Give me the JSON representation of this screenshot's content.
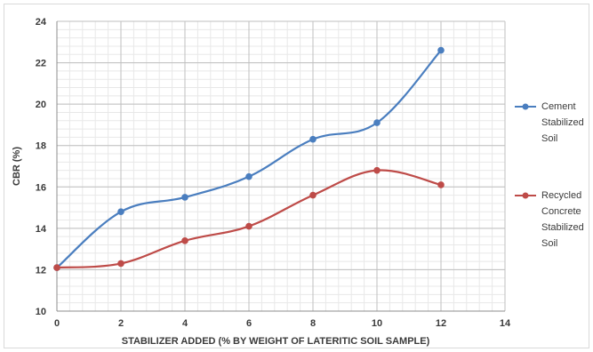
{
  "chart_data": {
    "type": "line",
    "x": [
      0,
      2,
      4,
      6,
      8,
      10,
      12
    ],
    "series": [
      {
        "name": "Cement Stabilized Soil",
        "label_lines": [
          "Cement",
          "Stabilized",
          "Soil"
        ],
        "color": "#4a7ebf",
        "values": [
          12.1,
          14.8,
          15.5,
          16.5,
          18.3,
          19.1,
          22.6
        ]
      },
      {
        "name": "Recycled Concrete Stabilized Soil",
        "label_lines": [
          "Recycled",
          "Concrete",
          "Stabilized",
          "Soil"
        ],
        "color": "#be4b48",
        "values": [
          12.1,
          12.3,
          13.4,
          14.1,
          15.6,
          16.8,
          16.1
        ]
      }
    ],
    "xlabel": "STABILIZER ADDED (% BY WEIGHT OF LATERITIC SOIL SAMPLE)",
    "ylabel": "CBR (%)",
    "xlim": [
      0,
      14
    ],
    "ylim": [
      10,
      24
    ],
    "xticks": [
      "0",
      "2",
      "4",
      "6",
      "8",
      "10",
      "12",
      "14"
    ],
    "yticks": [
      "10",
      "12",
      "14",
      "16",
      "18",
      "20",
      "22",
      "24"
    ],
    "grid": true,
    "minor_grid": true,
    "smooth_lines": true,
    "legend_position": "right"
  }
}
